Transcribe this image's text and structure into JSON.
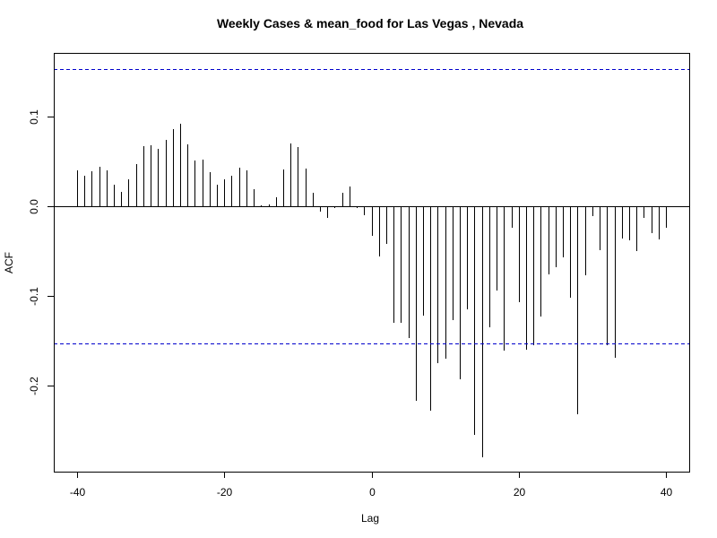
{
  "chart_data": {
    "type": "bar",
    "title": "Weekly Cases & mean_food for Las Vegas , Nevada",
    "xlabel": "Lag",
    "ylabel": "ACF",
    "xlim": [
      -40,
      40
    ],
    "ylim": [
      -0.3,
      0.17
    ],
    "x_ticks": [
      -40,
      -20,
      0,
      20,
      40
    ],
    "x_tick_labels": [
      "-40",
      "-20",
      "0",
      "20",
      "40"
    ],
    "y_ticks": [
      -0.2,
      -0.1,
      0.0,
      0.1
    ],
    "y_tick_labels": [
      "-0.2",
      "-0.1",
      "0.0",
      "0.1"
    ],
    "confidence_bounds": [
      0.153,
      -0.153
    ],
    "confidence_color": "#0000cc",
    "bar_color": "#000000",
    "grid": false,
    "x": [
      -40,
      -39,
      -38,
      -37,
      -36,
      -35,
      -34,
      -33,
      -32,
      -31,
      -30,
      -29,
      -28,
      -27,
      -26,
      -25,
      -24,
      -23,
      -22,
      -21,
      -20,
      -19,
      -18,
      -17,
      -16,
      -15,
      -14,
      -13,
      -12,
      -11,
      -10,
      -9,
      -8,
      -7,
      -6,
      -5,
      -4,
      -3,
      -2,
      -1,
      0,
      1,
      2,
      3,
      4,
      5,
      6,
      7,
      8,
      9,
      10,
      11,
      12,
      13,
      14,
      15,
      16,
      17,
      18,
      19,
      20,
      21,
      22,
      23,
      24,
      25,
      26,
      27,
      28,
      29,
      30,
      31,
      32,
      33,
      34,
      35,
      36,
      37,
      38,
      39,
      40
    ],
    "values": [
      0.04,
      0.034,
      0.039,
      0.044,
      0.04,
      0.024,
      0.016,
      0.03,
      0.047,
      0.067,
      0.068,
      0.064,
      0.074,
      0.086,
      0.092,
      0.069,
      0.051,
      0.052,
      0.038,
      0.024,
      0.03,
      0.034,
      0.043,
      0.04,
      0.019,
      0.001,
      0.002,
      0.01,
      0.041,
      0.07,
      0.066,
      0.042,
      0.015,
      -0.006,
      -0.013,
      -0.002,
      0.015,
      0.022,
      -0.002,
      -0.01,
      -0.033,
      -0.056,
      -0.042,
      -0.13,
      -0.13,
      -0.147,
      -0.217,
      -0.122,
      -0.228,
      -0.175,
      -0.17,
      -0.127,
      -0.193,
      -0.115,
      -0.255,
      -0.28,
      -0.135,
      -0.094,
      -0.161,
      -0.024,
      -0.107,
      -0.16,
      -0.155,
      -0.123,
      -0.076,
      -0.068,
      -0.057,
      -0.102,
      -0.232,
      -0.077,
      -0.011,
      -0.049,
      -0.155,
      -0.169,
      -0.036,
      -0.038,
      -0.05,
      -0.013,
      -0.03,
      -0.037,
      -0.024
    ]
  }
}
